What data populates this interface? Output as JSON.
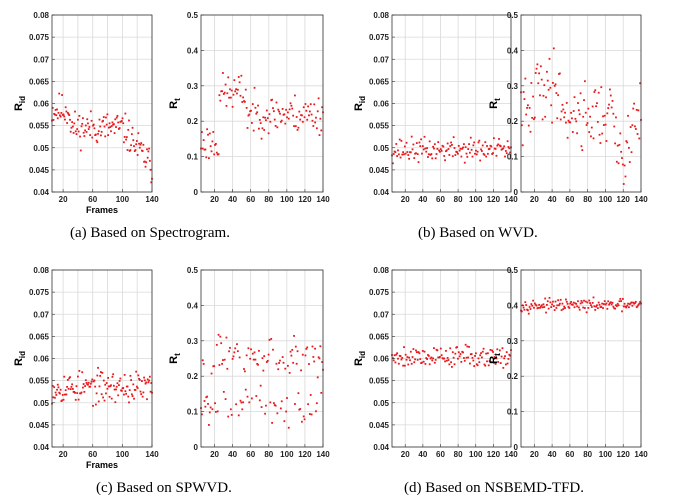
{
  "captions": [
    "(a) Based on Spectrogram.",
    "(b) Based on WVD.",
    "(c) Based on SPWVD.",
    "(d) Based on NSBEMD-TFD."
  ],
  "colors": {
    "point": "#e8191c",
    "grid": "#d9d9d9",
    "axis": "#333333"
  },
  "chart_data": [
    {
      "type": "scatter",
      "group": "a",
      "xlabel": "Frames",
      "ylabel_main": "R",
      "ylabel_sub": "id",
      "xlim": [
        5,
        140
      ],
      "ylim": [
        0.04,
        0.08
      ],
      "xticks": [
        20,
        60,
        100,
        140
      ],
      "xticks_minor": [
        40,
        80,
        120
      ],
      "yticks": [
        "0.04",
        "0.045",
        "0.05",
        "0.055",
        "0.06",
        "0.065",
        "0.07",
        "0.075",
        "0.08"
      ],
      "grid": true,
      "points_note": "n=140, mean 0.054, spread 0.004, trend downward after frame 100",
      "params": {
        "n": 140,
        "mean": 0.0545,
        "spread": 0.0035,
        "trend": "down_end",
        "seed": 11
      }
    },
    {
      "type": "scatter",
      "group": "a",
      "xlabel": "",
      "ylabel_main": "R",
      "ylabel_sub": "t",
      "xlim": [
        5,
        140
      ],
      "ylim": [
        0,
        0.5
      ],
      "xticks": [
        20,
        40,
        60,
        80,
        100,
        120,
        140
      ],
      "yticks": [
        "0",
        "0.1",
        "0.2",
        "0.3",
        "0.4",
        "0.5"
      ],
      "grid": true,
      "params": {
        "n": 140,
        "mean": 0.22,
        "spread": 0.05,
        "trend": "bump",
        "seed": 23
      }
    },
    {
      "type": "scatter",
      "group": "b",
      "xlabel": "",
      "ylabel_main": "R",
      "ylabel_sub": "id",
      "xlim": [
        5,
        140
      ],
      "ylim": [
        0.04,
        0.08
      ],
      "xticks": [
        20,
        40,
        60,
        80,
        100,
        120,
        140
      ],
      "yticks": [
        "0.04",
        "0.045",
        "0.05",
        "0.055",
        "0.06",
        "0.065",
        "0.07",
        "0.075",
        "0.08"
      ],
      "grid": true,
      "params": {
        "n": 140,
        "mean": 0.0495,
        "spread": 0.0025,
        "trend": "flat",
        "seed": 37
      }
    },
    {
      "type": "scatter",
      "group": "b",
      "xlabel": "",
      "ylabel_main": "R",
      "ylabel_sub": "t",
      "xlim": [
        5,
        140
      ],
      "ylim": [
        0,
        0.5
      ],
      "xticks": [
        20,
        40,
        60,
        80,
        100,
        120,
        140
      ],
      "yticks": [
        "0",
        "0.1",
        "0.2",
        "0.3",
        "0.4",
        "0.5"
      ],
      "grid": true,
      "params": {
        "n": 140,
        "mean": 0.22,
        "spread": 0.09,
        "trend": "wide",
        "seed": 41
      }
    },
    {
      "type": "scatter",
      "group": "c",
      "xlabel": "Frames",
      "ylabel_main": "R",
      "ylabel_sub": "id",
      "xlim": [
        5,
        140
      ],
      "ylim": [
        0.04,
        0.08
      ],
      "xticks": [
        20,
        60,
        100,
        140
      ],
      "xticks_minor": [
        40,
        80,
        120
      ],
      "yticks": [
        "0.04",
        "0.045",
        "0.05",
        "0.055",
        "0.06",
        "0.065",
        "0.07",
        "0.075",
        "0.08"
      ],
      "grid": true,
      "params": {
        "n": 140,
        "mean": 0.0535,
        "spread": 0.0033,
        "trend": "flat",
        "seed": 53
      }
    },
    {
      "type": "scatter",
      "group": "c",
      "xlabel": "",
      "ylabel_main": "R",
      "ylabel_sub": "t",
      "xlim": [
        5,
        140
      ],
      "ylim": [
        0,
        0.5
      ],
      "xticks": [
        20,
        40,
        60,
        80,
        100,
        120,
        140
      ],
      "yticks": [
        "0",
        "0.1",
        "0.2",
        "0.3",
        "0.4",
        "0.5"
      ],
      "grid": true,
      "params": {
        "n": 140,
        "mean": 0.2,
        "spread": 0.09,
        "trend": "bimodal",
        "seed": 67
      }
    },
    {
      "type": "scatter",
      "group": "d",
      "xlabel": "",
      "ylabel_main": "R",
      "ylabel_sub": "id",
      "xlim": [
        5,
        140
      ],
      "ylim": [
        0.04,
        0.08
      ],
      "xticks": [
        20,
        40,
        60,
        80,
        100,
        120,
        140
      ],
      "yticks": [
        "0.04",
        "0.045",
        "0.05",
        "0.055",
        "0.06",
        "0.065",
        "0.07",
        "0.075",
        "0.08"
      ],
      "grid": true,
      "params": {
        "n": 140,
        "mean": 0.0605,
        "spread": 0.0022,
        "trend": "flat",
        "seed": 79
      }
    },
    {
      "type": "scatter",
      "group": "d",
      "xlabel": "",
      "ylabel_main": "R",
      "ylabel_sub": "t",
      "xlim": [
        5,
        140
      ],
      "ylim": [
        0,
        0.5
      ],
      "xticks": [
        20,
        40,
        60,
        80,
        100,
        120,
        140
      ],
      "yticks": [
        "0",
        "0.1",
        "0.2",
        "0.3",
        "0.4",
        "0.5"
      ],
      "grid": true,
      "params": {
        "n": 140,
        "mean": 0.4,
        "spread": 0.015,
        "trend": "flat",
        "seed": 97
      }
    }
  ]
}
